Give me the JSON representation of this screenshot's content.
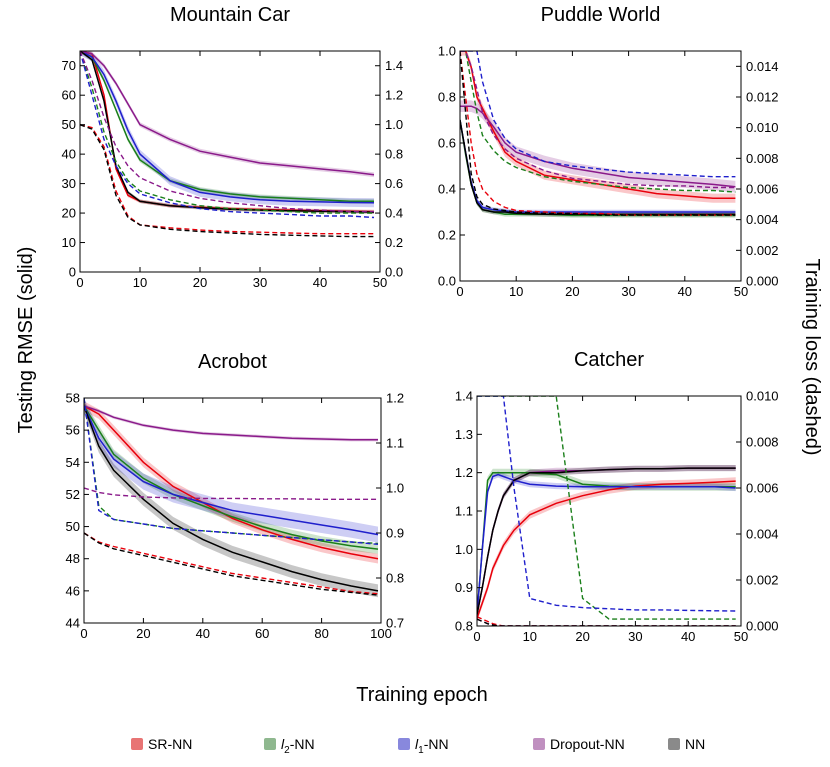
{
  "figure": {
    "left_ylabel": "Testing RMSE (solid)",
    "right_ylabel": "Training loss (dashed)",
    "xlabel": "Training epoch"
  },
  "colors": {
    "SR-NN": "#e8000b",
    "l2-NN": "#1a7f1a",
    "l1-NN": "#1f1fcc",
    "Dropout-NN": "#8a1a8a",
    "NN": "#000000"
  },
  "legend": [
    {
      "key": "SR-NN",
      "label": "SR-NN",
      "swatch": "#e87474"
    },
    {
      "key": "l2-NN",
      "label_prefix": "l",
      "label_sub": "2",
      "label_suffix": "-NN",
      "swatch": "#8fb88f"
    },
    {
      "key": "l1-NN",
      "label_prefix": "l",
      "label_sub": "1",
      "label_suffix": "-NN",
      "swatch": "#8888dd"
    },
    {
      "key": "Dropout-NN",
      "label": "Dropout-NN",
      "swatch": "#c090c0"
    },
    {
      "key": "NN",
      "label": "NN",
      "swatch": "#8a8a8a"
    }
  ],
  "chart_data": [
    {
      "type": "line",
      "title": "Mountain Car",
      "xlim": [
        0,
        50
      ],
      "xticks": [
        0,
        10,
        20,
        30,
        40,
        50
      ],
      "ylim": [
        0,
        75
      ],
      "yticks": [
        0,
        10,
        20,
        30,
        40,
        50,
        60,
        70
      ],
      "y2lim": [
        0,
        1.5
      ],
      "y2ticks": [
        "0.0",
        "0.2",
        "0.4",
        "0.6",
        "0.8",
        "1.0",
        "1.2",
        "1.4"
      ],
      "x": [
        0,
        2,
        4,
        6,
        8,
        10,
        15,
        20,
        25,
        30,
        35,
        40,
        45,
        49
      ],
      "solid": [
        {
          "key": "SR-NN",
          "values": [
            75,
            74,
            60,
            35,
            26,
            24,
            22.5,
            22,
            21.5,
            21.2,
            21,
            20.8,
            20.6,
            20.5
          ],
          "band": 0.6
        },
        {
          "key": "l2-NN",
          "values": [
            75,
            73,
            65,
            55,
            45,
            38,
            31,
            28,
            26.5,
            25.5,
            25,
            24.5,
            24,
            24
          ],
          "band": 0.8
        },
        {
          "key": "l1-NN",
          "values": [
            75,
            73,
            67,
            58,
            48,
            40,
            31,
            27,
            25.5,
            24.5,
            24,
            23.8,
            23.6,
            23.5
          ],
          "band": 1.5
        },
        {
          "key": "Dropout-NN",
          "values": [
            75,
            74,
            70,
            64,
            57,
            50,
            45,
            41,
            39,
            37,
            36,
            35,
            34,
            33
          ],
          "band": 0.8
        },
        {
          "key": "NN",
          "values": [
            75,
            72,
            58,
            36,
            27,
            24,
            22.5,
            21.8,
            21.3,
            21,
            20.8,
            20.6,
            20.5,
            20.3
          ],
          "band": 0.6
        }
      ],
      "dashed": [
        {
          "key": "SR-NN",
          "values": [
            1.0,
            0.98,
            0.85,
            0.55,
            0.38,
            0.32,
            0.3,
            0.285,
            0.275,
            0.27,
            0.265,
            0.26,
            0.26,
            0.26
          ]
        },
        {
          "key": "l2-NN",
          "values": [
            1.5,
            1.25,
            0.95,
            0.75,
            0.62,
            0.55,
            0.49,
            0.45,
            0.43,
            0.42,
            0.41,
            0.4,
            0.4,
            0.4
          ]
        },
        {
          "key": "l1-NN",
          "values": [
            1.5,
            1.2,
            0.9,
            0.72,
            0.6,
            0.53,
            0.47,
            0.43,
            0.41,
            0.4,
            0.39,
            0.38,
            0.38,
            0.37
          ]
        },
        {
          "key": "Dropout-NN",
          "values": [
            1.5,
            1.3,
            1.05,
            0.85,
            0.72,
            0.64,
            0.55,
            0.5,
            0.47,
            0.45,
            0.43,
            0.42,
            0.41,
            0.41
          ]
        },
        {
          "key": "NN",
          "values": [
            1.0,
            0.97,
            0.83,
            0.52,
            0.37,
            0.32,
            0.29,
            0.275,
            0.265,
            0.255,
            0.25,
            0.245,
            0.24,
            0.24
          ]
        }
      ]
    },
    {
      "type": "line",
      "title": "Puddle World",
      "xlim": [
        0,
        50
      ],
      "xticks": [
        0,
        10,
        20,
        30,
        40,
        50
      ],
      "ylim": [
        0,
        1.0
      ],
      "yticks": [
        "0.0",
        "0.2",
        "0.4",
        "0.6",
        "0.8",
        "1.0"
      ],
      "y2lim": [
        0,
        0.015
      ],
      "y2ticks": [
        "0.000",
        "0.002",
        "0.004",
        "0.006",
        "0.008",
        "0.010",
        "0.012",
        "0.014"
      ],
      "x": [
        0,
        1,
        2,
        3,
        4,
        6,
        8,
        10,
        15,
        20,
        25,
        30,
        35,
        40,
        45,
        49
      ],
      "solid": [
        {
          "key": "SR-NN",
          "values": [
            1.0,
            1.0,
            0.93,
            0.8,
            0.75,
            0.65,
            0.56,
            0.52,
            0.46,
            0.44,
            0.42,
            0.4,
            0.38,
            0.37,
            0.36,
            0.36
          ],
          "band": 0.02
        },
        {
          "key": "l2-NN",
          "values": [
            0.7,
            0.55,
            0.42,
            0.34,
            0.31,
            0.3,
            0.29,
            0.29,
            0.29,
            0.285,
            0.285,
            0.285,
            0.285,
            0.285,
            0.285,
            0.285
          ],
          "band": 0.01
        },
        {
          "key": "l1-NN",
          "values": [
            0.7,
            0.56,
            0.43,
            0.35,
            0.32,
            0.31,
            0.305,
            0.3,
            0.3,
            0.3,
            0.3,
            0.3,
            0.3,
            0.3,
            0.3,
            0.3
          ],
          "band": 0.01
        },
        {
          "key": "Dropout-NN",
          "values": [
            0.76,
            0.76,
            0.76,
            0.75,
            0.73,
            0.67,
            0.6,
            0.56,
            0.52,
            0.49,
            0.47,
            0.45,
            0.44,
            0.43,
            0.42,
            0.41
          ],
          "band": 0.025
        },
        {
          "key": "NN",
          "values": [
            0.7,
            0.56,
            0.42,
            0.34,
            0.31,
            0.3,
            0.3,
            0.295,
            0.29,
            0.29,
            0.29,
            0.29,
            0.29,
            0.29,
            0.29,
            0.29
          ],
          "band": 0.01
        }
      ],
      "dashed": [
        {
          "key": "SR-NN",
          "values": [
            0.015,
            0.012,
            0.009,
            0.007,
            0.006,
            0.0052,
            0.0048,
            0.0046,
            0.0045,
            0.0044,
            0.0044,
            0.0043,
            0.0043,
            0.0043,
            0.0043,
            0.0043
          ]
        },
        {
          "key": "l2-NN",
          "values": [
            0.015,
            0.015,
            0.013,
            0.011,
            0.0095,
            0.0085,
            0.0078,
            0.0074,
            0.0068,
            0.0065,
            0.0063,
            0.0061,
            0.006,
            0.0059,
            0.0059,
            0.0058
          ]
        },
        {
          "key": "l1-NN",
          "values": [
            0.015,
            0.015,
            0.015,
            0.015,
            0.013,
            0.0105,
            0.0093,
            0.0086,
            0.0078,
            0.0075,
            0.0073,
            0.0071,
            0.007,
            0.0069,
            0.0068,
            0.0068
          ]
        },
        {
          "key": "Dropout-NN",
          "values": [
            0.015,
            0.015,
            0.014,
            0.0125,
            0.011,
            0.0095,
            0.0086,
            0.008,
            0.0072,
            0.0067,
            0.0065,
            0.0063,
            0.0062,
            0.0062,
            0.0061,
            0.0061
          ]
        },
        {
          "key": "NN",
          "values": [
            0.015,
            0.011,
            0.007,
            0.0055,
            0.005,
            0.0047,
            0.0046,
            0.0045,
            0.0044,
            0.0044,
            0.0043,
            0.0043,
            0.0043,
            0.0043,
            0.0043,
            0.0043
          ]
        }
      ]
    },
    {
      "type": "line",
      "title": "Acrobot",
      "xlim": [
        0,
        100
      ],
      "xticks": [
        0,
        20,
        40,
        60,
        80,
        100
      ],
      "ylim": [
        44,
        58
      ],
      "yticks": [
        44,
        46,
        48,
        50,
        52,
        54,
        56,
        58
      ],
      "y2lim": [
        0.7,
        1.2
      ],
      "y2ticks": [
        "0.7",
        "0.8",
        "0.9",
        "1.0",
        "1.1",
        "1.2"
      ],
      "x": [
        0,
        5,
        10,
        20,
        30,
        40,
        50,
        60,
        70,
        80,
        90,
        99
      ],
      "solid": [
        {
          "key": "SR-NN",
          "values": [
            57.5,
            57,
            56,
            54,
            52.5,
            51.5,
            50.5,
            49.8,
            49.2,
            48.7,
            48.3,
            48.0
          ],
          "band": 0.3
        },
        {
          "key": "l2-NN",
          "values": [
            57.5,
            56,
            54.5,
            53,
            52,
            51.3,
            50.6,
            50,
            49.5,
            49.1,
            48.8,
            48.6
          ],
          "band": 0.3
        },
        {
          "key": "l1-NN",
          "values": [
            57.5,
            55.5,
            54.2,
            52.8,
            52,
            51.5,
            51,
            50.7,
            50.4,
            50.1,
            49.8,
            49.5
          ],
          "band": 0.5
        },
        {
          "key": "Dropout-NN",
          "values": [
            57.5,
            57.2,
            56.8,
            56.3,
            56,
            55.8,
            55.7,
            55.6,
            55.5,
            55.45,
            55.4,
            55.4
          ],
          "band": 0.1
        },
        {
          "key": "NN",
          "values": [
            57.5,
            55,
            53.5,
            51.7,
            50.2,
            49.2,
            48.4,
            47.8,
            47.2,
            46.7,
            46.3,
            46.0
          ],
          "band": 0.4
        }
      ],
      "dashed": [
        {
          "key": "SR-NN",
          "values": [
            0.9,
            0.88,
            0.87,
            0.855,
            0.84,
            0.825,
            0.81,
            0.8,
            0.79,
            0.78,
            0.77,
            0.765
          ]
        },
        {
          "key": "l2-NN",
          "values": [
            1.2,
            0.96,
            0.93,
            0.92,
            0.91,
            0.905,
            0.9,
            0.895,
            0.89,
            0.885,
            0.88,
            0.877
          ]
        },
        {
          "key": "l1-NN",
          "values": [
            1.2,
            0.95,
            0.93,
            0.92,
            0.91,
            0.905,
            0.9,
            0.895,
            0.89,
            0.885,
            0.88,
            0.875
          ]
        },
        {
          "key": "Dropout-NN",
          "values": [
            1.0,
            0.99,
            0.985,
            0.98,
            0.978,
            0.977,
            0.977,
            0.976,
            0.976,
            0.975,
            0.975,
            0.975
          ]
        },
        {
          "key": "NN",
          "values": [
            0.9,
            0.878,
            0.865,
            0.85,
            0.835,
            0.82,
            0.805,
            0.795,
            0.785,
            0.775,
            0.768,
            0.762
          ]
        }
      ]
    },
    {
      "type": "line",
      "title": "Catcher",
      "xlim": [
        0,
        50
      ],
      "xticks": [
        0,
        10,
        20,
        30,
        40,
        50
      ],
      "ylim": [
        0.8,
        1.4
      ],
      "yticks": [
        "0.8",
        "0.9",
        "1.0",
        "1.1",
        "1.2",
        "1.3",
        "1.4"
      ],
      "y2lim": [
        0,
        0.01
      ],
      "y2ticks": [
        "0.000",
        "0.002",
        "0.004",
        "0.006",
        "0.008",
        "0.010"
      ],
      "x": [
        0,
        1,
        2,
        3,
        4,
        5,
        7,
        10,
        15,
        20,
        25,
        30,
        35,
        40,
        45,
        49
      ],
      "solid": [
        {
          "key": "SR-NN",
          "values": [
            0.82,
            0.86,
            0.9,
            0.95,
            0.98,
            1.01,
            1.05,
            1.09,
            1.12,
            1.14,
            1.155,
            1.165,
            1.17,
            1.172,
            1.175,
            1.178
          ],
          "band": 0.01
        },
        {
          "key": "l2-NN",
          "values": [
            0.83,
            1.0,
            1.18,
            1.2,
            1.2,
            1.2,
            1.2,
            1.2,
            1.195,
            1.17,
            1.165,
            1.163,
            1.163,
            1.163,
            1.163,
            1.163
          ],
          "band": 0.01
        },
        {
          "key": "l1-NN",
          "values": [
            0.83,
            1.0,
            1.15,
            1.19,
            1.195,
            1.19,
            1.18,
            1.17,
            1.165,
            1.163,
            1.163,
            1.163,
            1.163,
            1.163,
            1.163,
            1.16
          ],
          "band": 0.008
        },
        {
          "key": "Dropout-NN",
          "values": [
            0.83,
            0.9,
            0.98,
            1.05,
            1.1,
            1.14,
            1.18,
            1.2,
            1.205,
            1.205,
            1.208,
            1.21,
            1.21,
            1.212,
            1.212,
            1.212
          ],
          "band": 0.008
        },
        {
          "key": "NN",
          "values": [
            0.83,
            0.9,
            0.98,
            1.05,
            1.1,
            1.14,
            1.18,
            1.2,
            1.2,
            1.205,
            1.208,
            1.21,
            1.21,
            1.212,
            1.212,
            1.212
          ],
          "band": 0.008
        }
      ],
      "dashed": [
        {
          "key": "SR-NN",
          "values": [
            0.0004,
            0.0003,
            0.0002,
            0.0001,
            5e-05,
            0,
            0,
            0,
            0,
            0,
            0,
            0,
            0,
            0,
            0,
            0
          ]
        },
        {
          "key": "l2-NN",
          "values": [
            0.01,
            0.01,
            0.01,
            0.01,
            0.01,
            0.01,
            0.01,
            0.01,
            0.01,
            0.0012,
            0.0003,
            0.0003,
            0.0003,
            0.0003,
            0.0003,
            0.0003
          ]
        },
        {
          "key": "l1-NN",
          "values": [
            0.01,
            0.01,
            0.01,
            0.01,
            0.01,
            0.01,
            0.006,
            0.0012,
            0.0009,
            0.0008,
            0.00075,
            0.0007,
            0.0007,
            0.00068,
            0.00066,
            0.00065
          ]
        },
        {
          "key": "Dropout-NN",
          "values": [
            0.0003,
            0.0002,
            0.0001,
            5e-05,
            0,
            0,
            0,
            0,
            0,
            0,
            0,
            0,
            0,
            0,
            0,
            0
          ]
        },
        {
          "key": "NN",
          "values": [
            0.0003,
            0.0002,
            0.0001,
            5e-05,
            0,
            0,
            0,
            0,
            0,
            0,
            0,
            0,
            0,
            0,
            0,
            0
          ]
        }
      ]
    }
  ]
}
